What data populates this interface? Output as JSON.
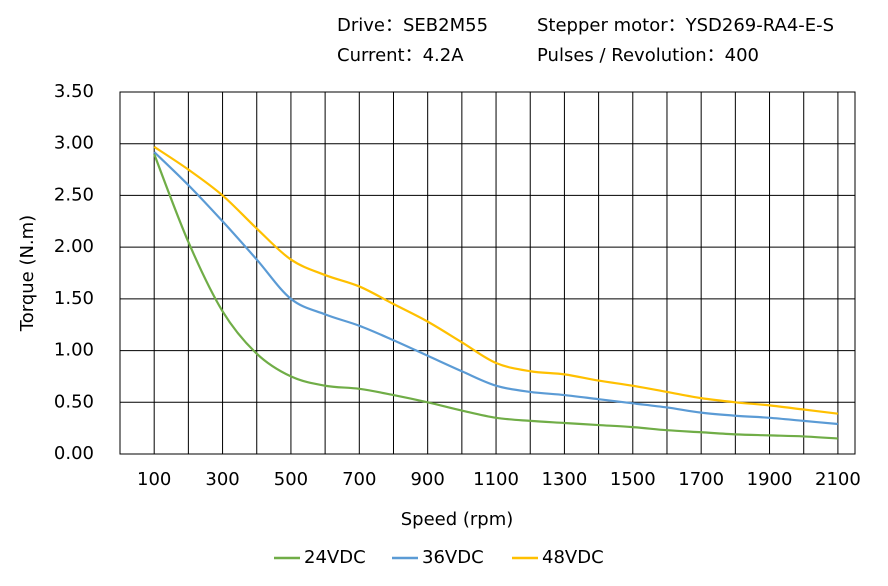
{
  "chart_data": {
    "type": "line",
    "header": [
      "Drive：SEB2M55",
      "Stepper motor：YSD269-RA4-E-S",
      "Current：4.2A",
      "Pulses / Revolution：400"
    ],
    "xlabel": "Speed (rpm)",
    "ylabel": "Torque (N.m)",
    "x": [
      100,
      200,
      300,
      400,
      500,
      600,
      700,
      800,
      900,
      1000,
      1100,
      1200,
      1300,
      1400,
      1500,
      1600,
      1700,
      1800,
      1900,
      2000,
      2100
    ],
    "series": [
      {
        "name": "24VDC",
        "color": "#70ad47",
        "values": [
          2.9,
          2.05,
          1.38,
          0.97,
          0.75,
          0.66,
          0.63,
          0.57,
          0.5,
          0.42,
          0.35,
          0.32,
          0.3,
          0.28,
          0.26,
          0.23,
          0.21,
          0.19,
          0.18,
          0.17,
          0.15
        ]
      },
      {
        "name": "36VDC",
        "color": "#5b9bd5",
        "values": [
          2.92,
          2.6,
          2.25,
          1.88,
          1.5,
          1.35,
          1.24,
          1.1,
          0.95,
          0.8,
          0.66,
          0.6,
          0.57,
          0.53,
          0.49,
          0.45,
          0.4,
          0.37,
          0.35,
          0.32,
          0.29
        ]
      },
      {
        "name": "48VDC",
        "color": "#ffc000",
        "values": [
          2.97,
          2.75,
          2.5,
          2.18,
          1.88,
          1.73,
          1.62,
          1.45,
          1.28,
          1.08,
          0.88,
          0.8,
          0.77,
          0.71,
          0.66,
          0.6,
          0.54,
          0.5,
          0.47,
          0.43,
          0.39
        ]
      }
    ],
    "xlim": [
      0,
      2150
    ],
    "xticks": [
      100,
      300,
      500,
      700,
      900,
      1100,
      1300,
      1500,
      1700,
      1900,
      2100
    ],
    "xminorticks": [
      0,
      200,
      400,
      600,
      800,
      1000,
      1200,
      1400,
      1600,
      1800,
      2000
    ],
    "ylim": [
      0,
      3.5
    ],
    "yticks": [
      {
        "value": 0,
        "label": "0.00"
      },
      {
        "value": 0.5,
        "label": "0.50"
      },
      {
        "value": 1,
        "label": "1.00"
      },
      {
        "value": 1.5,
        "label": "1.50"
      },
      {
        "value": 2,
        "label": "2.00"
      },
      {
        "value": 2.5,
        "label": "2.50"
      },
      {
        "value": 3,
        "label": "3.00"
      },
      {
        "value": 3.5,
        "label": "3.50"
      }
    ],
    "grid": true,
    "legend": "bottom"
  }
}
